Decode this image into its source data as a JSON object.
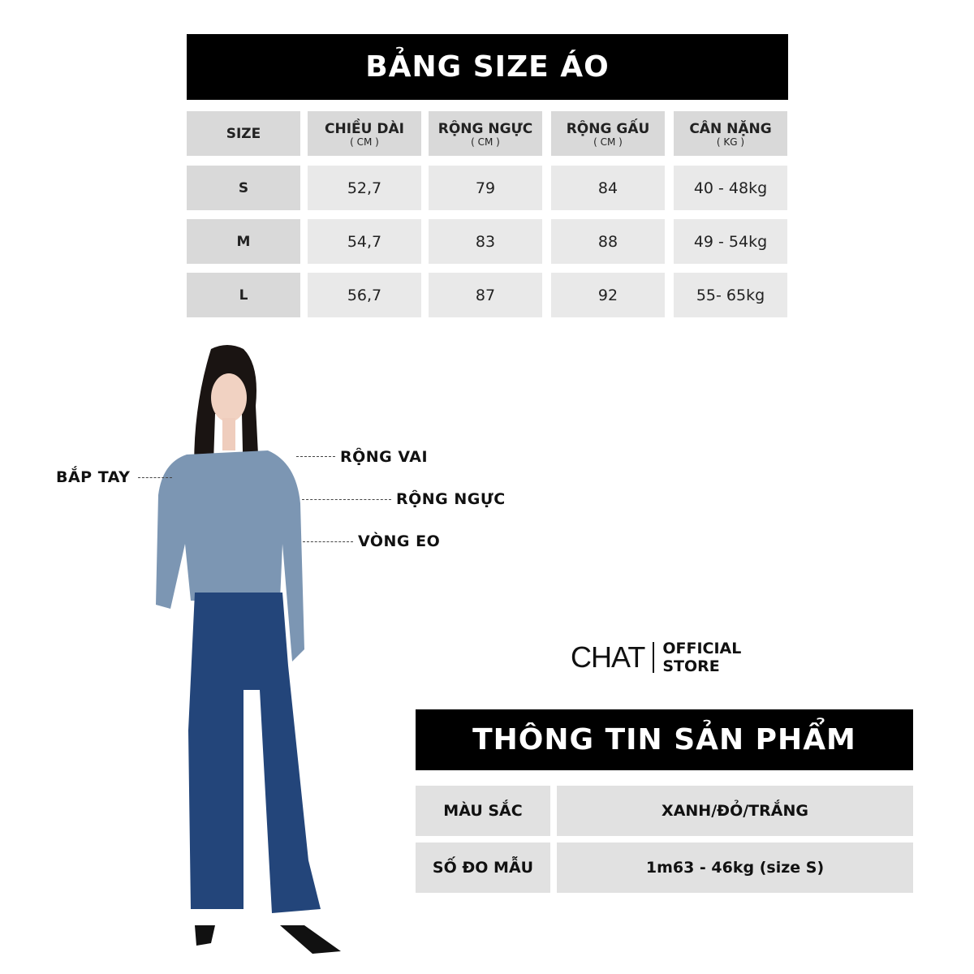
{
  "size_chart": {
    "title": "BẢNG SIZE ÁO",
    "headers": [
      {
        "label": "SIZE",
        "unit": ""
      },
      {
        "label": "CHIỀU DÀI",
        "unit": "( CM )"
      },
      {
        "label": "RỘNG NGỰC",
        "unit": "( CM )"
      },
      {
        "label": "RỘNG GẤU",
        "unit": "( CM )"
      },
      {
        "label": "CÂN NẶNG",
        "unit": "( KG )"
      }
    ],
    "rows": [
      [
        "S",
        "52,7",
        "79",
        "84",
        "40 - 48kg"
      ],
      [
        "M",
        "54,7",
        "83",
        "88",
        "49 - 54kg"
      ],
      [
        "L",
        "56,7",
        "87",
        "92",
        "55- 65kg"
      ]
    ]
  },
  "measure_labels": {
    "upper_arm": "BẮP TAY",
    "shoulder": "RỘNG VAI",
    "chest": "RỘNG NGỰC",
    "waist": "VÒNG EO"
  },
  "brand": {
    "logo": "CHAT",
    "line1": "OFFICIAL",
    "line2": "STORE"
  },
  "product_info": {
    "title": "THÔNG TIN SẢN PHẨM",
    "rows": [
      {
        "label": "MÀU SẮC",
        "value": "XANH/ĐỎ/TRẮNG"
      },
      {
        "label": "SỐ ĐO MẪU",
        "value": "1m63 - 46kg (size S)"
      }
    ]
  },
  "colors": {
    "banner": "#000000",
    "cell_dark": "#d9d9d9",
    "cell_light": "#e9e9e9",
    "shirt": "#7c96b3",
    "jeans": "#23457a"
  }
}
